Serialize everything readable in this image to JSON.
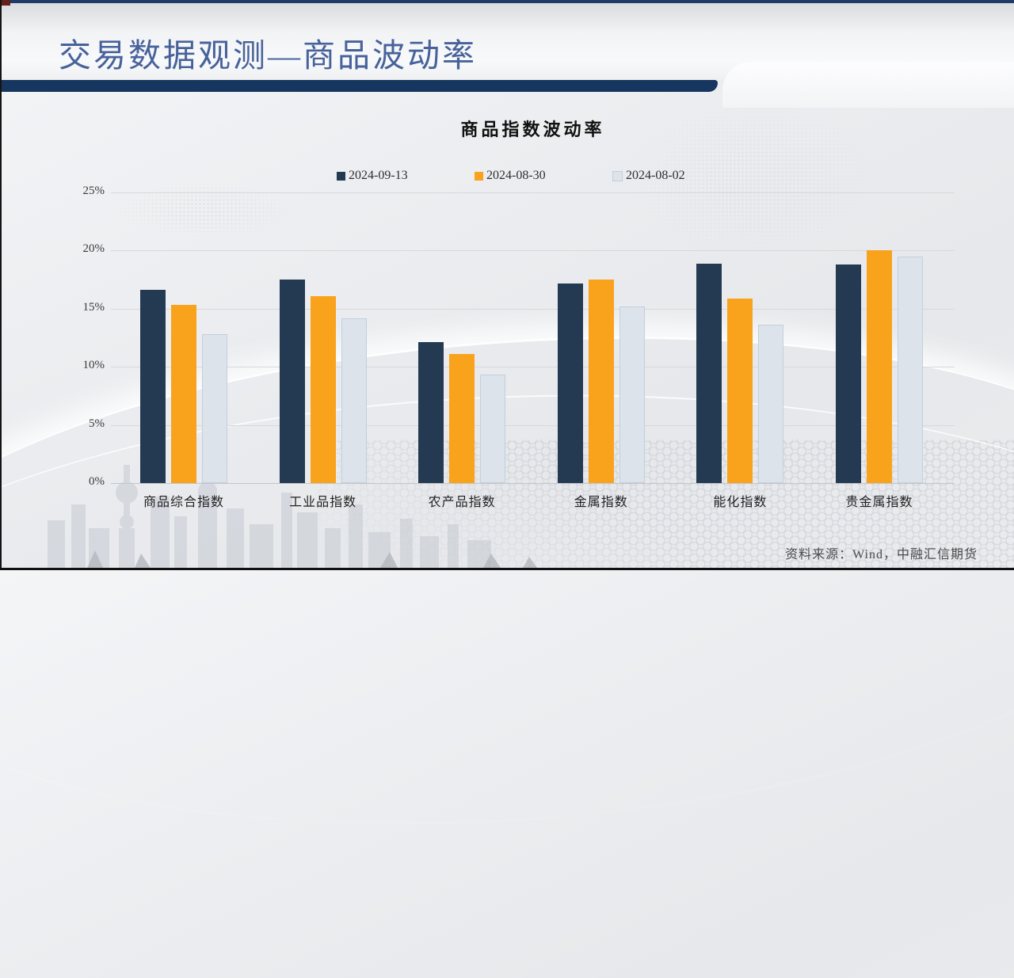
{
  "page": {
    "title": "交易数据观测—商品波动率",
    "source_note": "资料来源：Wind，中融汇信期货"
  },
  "colors": {
    "title_text": "#47629b",
    "ribbon": "#16365f",
    "top_strip": "#1d3a69",
    "gridline": "#d7d8da",
    "axis_text": "#3a3a3a",
    "series_navy": "#243a52",
    "series_orange": "#f9a31d",
    "series_light_fill": "#dde3eb",
    "series_light_border": "#c2cfdd"
  },
  "icons": {
    "legend_swatch": "square"
  },
  "chart_data": {
    "type": "bar",
    "title": "商品指数波动率",
    "categories": [
      "商品综合指数",
      "工业品指数",
      "农产品指数",
      "金属指数",
      "能化指数",
      "贵金属指数"
    ],
    "series": [
      {
        "name": "2024-09-13",
        "color": "#243a52",
        "values": [
          16.6,
          17.5,
          12.1,
          17.2,
          18.9,
          18.8
        ]
      },
      {
        "name": "2024-08-30",
        "color": "#f9a31d",
        "values": [
          15.3,
          16.1,
          11.1,
          17.5,
          15.9,
          20.0
        ]
      },
      {
        "name": "2024-08-02",
        "color": "#dde3eb",
        "border_color": "#c2cfdd",
        "values": [
          12.8,
          14.2,
          9.3,
          15.2,
          13.6,
          19.5
        ]
      }
    ],
    "xlabel": "",
    "ylabel": "",
    "ylim": [
      0,
      25
    ],
    "yticks": [
      0,
      5,
      10,
      15,
      20,
      25
    ],
    "ytick_suffix": "%",
    "grid": true,
    "legend_position": "top"
  }
}
